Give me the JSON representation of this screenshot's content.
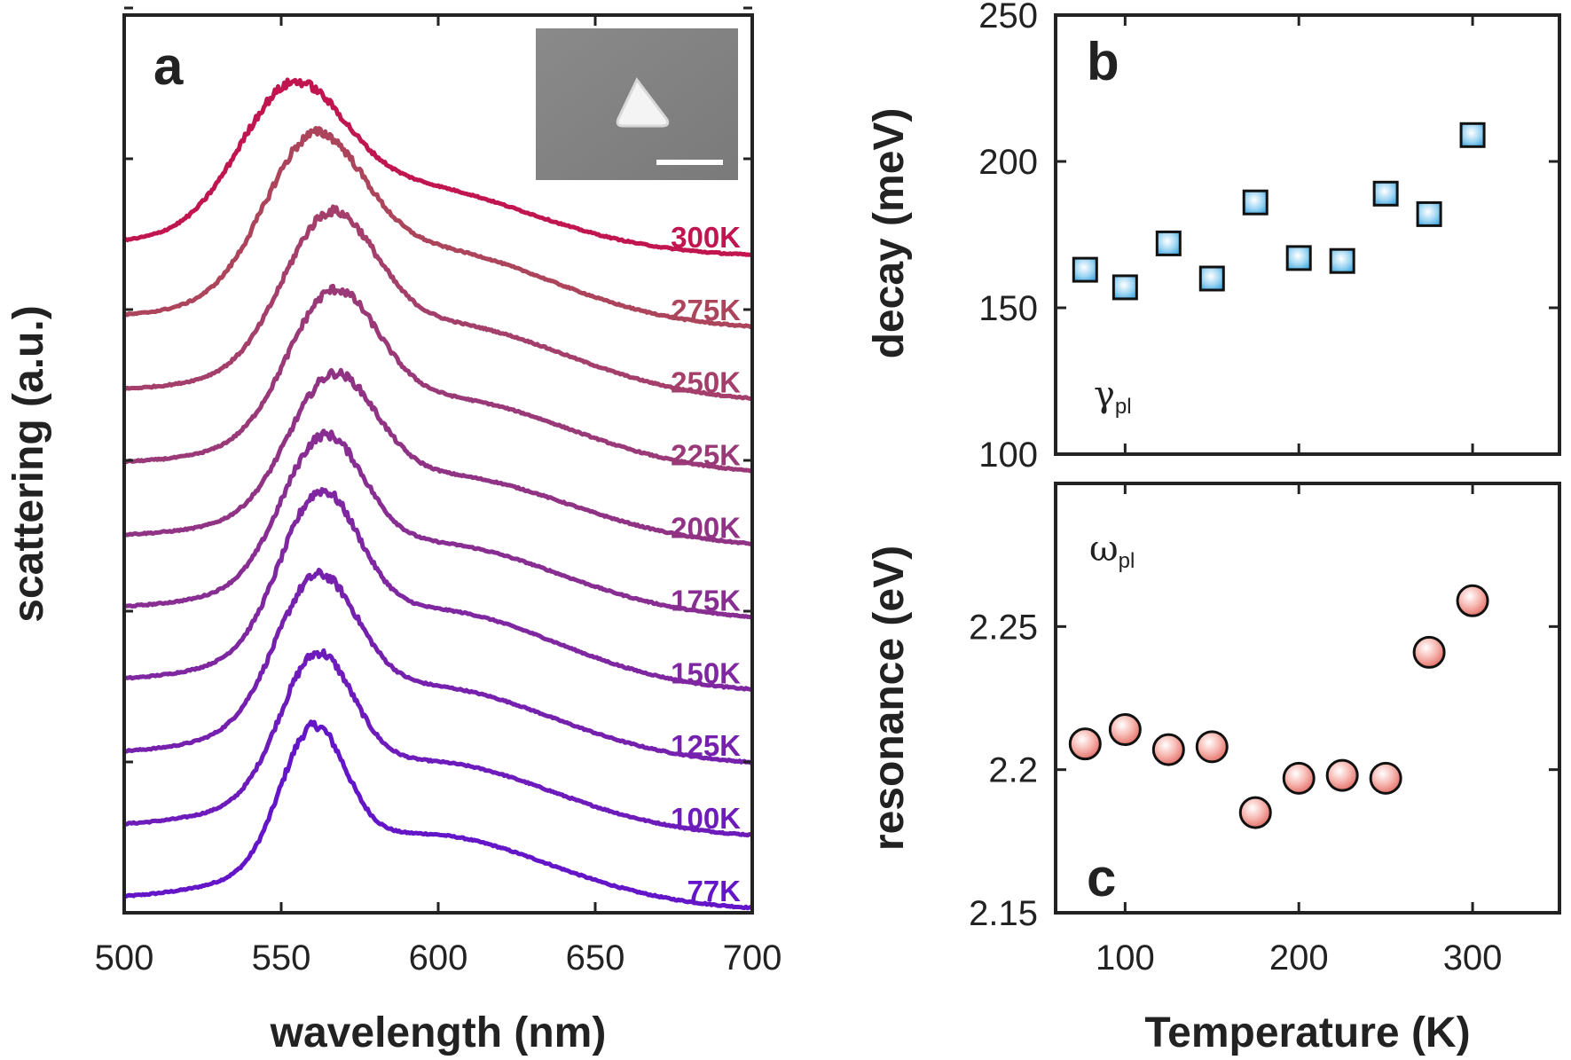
{
  "chart_data": [
    {
      "panel_label": "a",
      "type": "line",
      "xlabel": "wavelength (nm)",
      "ylabel": "scattering (a.u.)",
      "xlim": [
        500,
        700
      ],
      "x_ticks": [
        500,
        550,
        600,
        650,
        700
      ],
      "inset": "SEM image of a triangular nanoparticle with scale bar",
      "series": [
        {
          "name": "77K",
          "temperature": 77,
          "offset": 0.0,
          "peak_nm": 560,
          "fwhm_nm": 24,
          "amp": 1.6,
          "color": "#6415c8"
        },
        {
          "name": "100K",
          "temperature": 100,
          "offset": 0.9,
          "peak_nm": 561,
          "fwhm_nm": 27,
          "amp": 1.6,
          "color": "#6d1bbb"
        },
        {
          "name": "125K",
          "temperature": 125,
          "offset": 1.8,
          "peak_nm": 561,
          "fwhm_nm": 30,
          "amp": 1.65,
          "color": "#7621ad"
        },
        {
          "name": "150K",
          "temperature": 150,
          "offset": 2.7,
          "peak_nm": 562,
          "fwhm_nm": 29,
          "amp": 1.75,
          "color": "#7f27a0"
        },
        {
          "name": "175K",
          "temperature": 175,
          "offset": 3.6,
          "peak_nm": 563,
          "fwhm_nm": 30,
          "amp": 1.6,
          "color": "#882d92"
        },
        {
          "name": "200K",
          "temperature": 200,
          "offset": 4.5,
          "peak_nm": 566,
          "fwhm_nm": 32,
          "amp": 1.5,
          "color": "#913385"
        },
        {
          "name": "225K",
          "temperature": 225,
          "offset": 5.4,
          "peak_nm": 566,
          "fwhm_nm": 33,
          "amp": 1.6,
          "color": "#9a3977"
        },
        {
          "name": "250K",
          "temperature": 250,
          "offset": 6.3,
          "peak_nm": 565,
          "fwhm_nm": 34,
          "amp": 1.65,
          "color": "#a33f6a"
        },
        {
          "name": "275K",
          "temperature": 275,
          "offset": 7.2,
          "peak_nm": 560,
          "fwhm_nm": 36,
          "amp": 1.7,
          "color": "#ac455c"
        },
        {
          "name": "300K",
          "temperature": 300,
          "offset": 8.1,
          "peak_nm": 553,
          "fwhm_nm": 38,
          "amp": 1.5,
          "color": "#c0154f"
        }
      ]
    },
    {
      "panel_label": "b",
      "type": "scatter",
      "ylabel": "decay (meV)",
      "annotation_symbol": "γ",
      "annotation_sub": "pl",
      "ylim": [
        100,
        250
      ],
      "y_ticks": [
        100,
        150,
        200,
        250
      ],
      "xlim": [
        60,
        350
      ],
      "marker": "square",
      "marker_color": "#7cc8ee",
      "x": [
        77,
        100,
        125,
        150,
        175,
        200,
        225,
        250,
        275,
        300
      ],
      "y": [
        163,
        157,
        172,
        160,
        186,
        167,
        166,
        189,
        182,
        209
      ],
      "err": [
        1.5,
        1.5,
        1.5,
        1.5,
        3,
        1.5,
        1.5,
        3,
        1.5,
        1.5
      ]
    },
    {
      "panel_label": "c",
      "type": "scatter",
      "xlabel": "Temperature (K)",
      "ylabel": "resonance (eV)",
      "annotation_symbol": "ω",
      "annotation_sub": "pl",
      "ylim": [
        2.15,
        2.3
      ],
      "y_ticks": [
        2.15,
        2.2,
        2.25
      ],
      "y_tick_labels": [
        "2.15",
        "2.2",
        "2.25"
      ],
      "xlim": [
        60,
        350
      ],
      "x_ticks": [
        100,
        200,
        300
      ],
      "marker": "circle",
      "marker_color": "#f2a29c",
      "x": [
        77,
        100,
        125,
        150,
        175,
        200,
        225,
        250,
        275,
        300
      ],
      "y": [
        2.209,
        2.214,
        2.207,
        2.208,
        2.185,
        2.197,
        2.198,
        2.197,
        2.241,
        2.259
      ]
    }
  ]
}
